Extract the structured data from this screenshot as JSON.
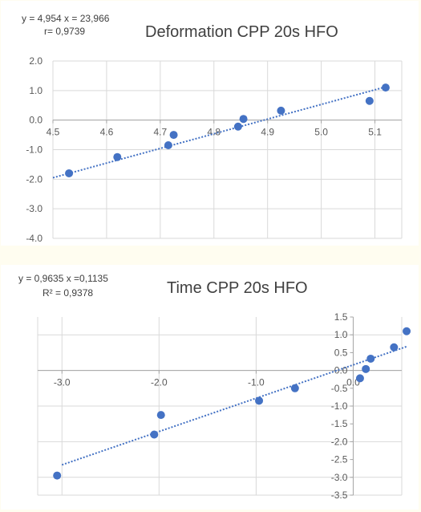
{
  "chart_data": [
    {
      "type": "scatter",
      "title": "Deformation  CPP 20s HFO",
      "equation": "y = 4,954 x = 23,966",
      "stat": "r= 0,9739",
      "xlabel": "",
      "ylabel": "",
      "xlim": [
        4.5,
        5.15
      ],
      "ylim": [
        -4.0,
        2.0
      ],
      "x_ticks": [
        "4.5",
        "4.6",
        "4.7",
        "4.8",
        "4.9",
        "5.0",
        "5.1"
      ],
      "y_ticks": [
        "2.0",
        "1.0",
        "0.0",
        "-1.0",
        "-2.0",
        "-3.0",
        "-4.0"
      ],
      "grid": true,
      "trendline": "linear, dotted",
      "color": "#4472c4",
      "points": [
        {
          "x": 4.53,
          "y": -1.8
        },
        {
          "x": 4.62,
          "y": -1.25
        },
        {
          "x": 4.715,
          "y": -0.85
        },
        {
          "x": 4.725,
          "y": -0.5
        },
        {
          "x": 4.845,
          "y": -0.22
        },
        {
          "x": 4.855,
          "y": 0.04
        },
        {
          "x": 4.925,
          "y": 0.32
        },
        {
          "x": 5.09,
          "y": 0.65
        },
        {
          "x": 5.12,
          "y": 1.1
        }
      ],
      "trend": {
        "x0": 4.5,
        "y0": -1.95,
        "x1": 5.125,
        "y1": 1.15
      }
    },
    {
      "type": "scatter",
      "title": "Time   CPP 20s HFO",
      "equation": "y = 0,9635 x =0,1135",
      "stat": "R² = 0,9378",
      "xlabel": "",
      "ylabel": "",
      "xlim": [
        -3.25,
        0.5
      ],
      "ylim": [
        -3.5,
        1.5
      ],
      "x_ticks": [
        "-3.0",
        "-2.0",
        "-1.0",
        "0.0"
      ],
      "y_ticks": [
        "1.5",
        "1.0",
        "0.5",
        "0.0",
        "-0.5",
        "-1.0",
        "-1.5",
        "-2.0",
        "-2.5",
        "-3.0",
        "-3.5"
      ],
      "grid": true,
      "trendline": "linear, dotted",
      "color": "#4472c4",
      "points": [
        {
          "x": -3.05,
          "y": -2.95
        },
        {
          "x": -2.05,
          "y": -1.8
        },
        {
          "x": -1.98,
          "y": -1.25
        },
        {
          "x": -0.97,
          "y": -0.85
        },
        {
          "x": -0.6,
          "y": -0.5
        },
        {
          "x": 0.07,
          "y": -0.22
        },
        {
          "x": 0.13,
          "y": 0.04
        },
        {
          "x": 0.18,
          "y": 0.33
        },
        {
          "x": 0.42,
          "y": 0.65
        },
        {
          "x": 0.55,
          "y": 1.1
        }
      ],
      "trend": {
        "x0": -3.0,
        "y0": -2.65,
        "x1": 0.55,
        "y1": 0.67
      }
    }
  ]
}
